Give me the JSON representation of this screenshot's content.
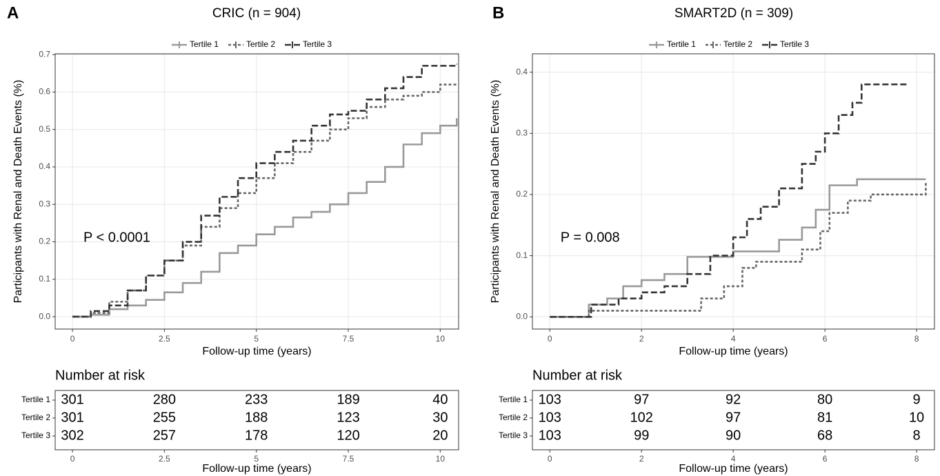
{
  "chart_data": [
    {
      "type": "step",
      "panel": "A",
      "title": "CRIC (n = 904)",
      "xlabel": "Follow-up time (years)",
      "ylabel": "Participants with Renal and Death Events (%)",
      "annotation": "P < 0.0001",
      "risk_title": "Number at risk",
      "grid": true,
      "legend": "top",
      "xlim": [
        -0.47,
        10.5
      ],
      "xticks": [
        0,
        2.5,
        5,
        7.5,
        10
      ],
      "ylim": [
        -0.033,
        0.702
      ],
      "yticks": [
        {
          "value": 0,
          "label": "0.0"
        },
        {
          "value": 0.1,
          "label": "0.1"
        },
        {
          "value": 0.2,
          "label": "0.2"
        },
        {
          "value": 0.3,
          "label": "0.3"
        },
        {
          "value": 0.4,
          "label": "0.4"
        },
        {
          "value": 0.5,
          "label": "0.5"
        },
        {
          "value": 0.6,
          "label": "0.6"
        },
        {
          "value": 0.7,
          "label": "0.7"
        }
      ],
      "series": [
        {
          "name": "Tertile 1",
          "color": "#999999",
          "dash": "solid",
          "x": [
            0,
            0.5,
            1,
            1.5,
            2,
            2.5,
            3,
            3.5,
            4,
            4.5,
            5,
            5.5,
            6,
            6.5,
            7,
            7.5,
            8,
            8.5,
            9,
            9.5,
            10,
            10.45
          ],
          "values": [
            0,
            0.005,
            0.02,
            0.03,
            0.045,
            0.065,
            0.09,
            0.12,
            0.17,
            0.19,
            0.22,
            0.24,
            0.265,
            0.28,
            0.3,
            0.33,
            0.36,
            0.4,
            0.46,
            0.49,
            0.51,
            0.53
          ],
          "at_risk": [
            301,
            280,
            233,
            189,
            40
          ]
        },
        {
          "name": "Tertile 2",
          "color": "#666666",
          "dash": "dotted",
          "x": [
            0,
            0.5,
            1,
            1.5,
            2,
            2.5,
            3,
            3.5,
            4,
            4.5,
            5,
            5.5,
            6,
            6.5,
            7,
            7.5,
            8,
            8.5,
            9,
            9.5,
            10,
            10.45
          ],
          "values": [
            0,
            0.01,
            0.04,
            0.07,
            0.11,
            0.15,
            0.19,
            0.24,
            0.29,
            0.33,
            0.37,
            0.41,
            0.44,
            0.47,
            0.5,
            0.53,
            0.56,
            0.58,
            0.59,
            0.6,
            0.62,
            0.62
          ],
          "at_risk": [
            301,
            255,
            188,
            123,
            30
          ]
        },
        {
          "name": "Tertile 3",
          "color": "#333333",
          "dash": "dashed",
          "x": [
            0,
            0.5,
            1,
            1.5,
            2,
            2.5,
            3,
            3.5,
            4,
            4.5,
            5,
            5.5,
            6,
            6.5,
            7,
            7.5,
            8,
            8.5,
            9,
            9.5,
            10,
            10.45
          ],
          "values": [
            0,
            0.015,
            0.03,
            0.07,
            0.11,
            0.15,
            0.2,
            0.27,
            0.32,
            0.37,
            0.41,
            0.44,
            0.47,
            0.51,
            0.54,
            0.55,
            0.58,
            0.61,
            0.64,
            0.67,
            0.67,
            0.675
          ],
          "at_risk": [
            302,
            257,
            178,
            120,
            20
          ]
        }
      ]
    },
    {
      "type": "step",
      "panel": "B",
      "title": "SMART2D (n = 309)",
      "xlabel": "Follow-up time (years)",
      "ylabel": "Participants with Renal and Death Events (%)",
      "annotation": "P = 0.008",
      "risk_title": "Number at risk",
      "grid": true,
      "legend": "top",
      "xlim": [
        -0.38,
        8.39
      ],
      "xticks": [
        0,
        2,
        4,
        6,
        8
      ],
      "ylim": [
        -0.02,
        0.43
      ],
      "yticks": [
        {
          "value": 0,
          "label": "0.0"
        },
        {
          "value": 0.1,
          "label": "0.1"
        },
        {
          "value": 0.2,
          "label": "0.2"
        },
        {
          "value": 0.3,
          "label": "0.3"
        },
        {
          "value": 0.4,
          "label": "0.4"
        }
      ],
      "series": [
        {
          "name": "Tertile 1",
          "color": "#999999",
          "dash": "solid",
          "x": [
            0,
            0.85,
            1.25,
            1.6,
            2,
            2.5,
            3,
            3.5,
            4,
            4.5,
            5,
            5.5,
            5.8,
            6.1,
            6.7,
            8.2
          ],
          "values": [
            0,
            0.02,
            0.03,
            0.05,
            0.06,
            0.07,
            0.098,
            0.098,
            0.107,
            0.107,
            0.126,
            0.146,
            0.175,
            0.215,
            0.225,
            0.225
          ],
          "at_risk": [
            103,
            97,
            92,
            80,
            9
          ]
        },
        {
          "name": "Tertile 2",
          "color": "#666666",
          "dash": "dotted",
          "x": [
            0,
            0.85,
            3,
            3.3,
            3.8,
            4.2,
            4.5,
            5,
            5.5,
            5.9,
            6.1,
            6.5,
            7,
            8.2
          ],
          "values": [
            0,
            0.01,
            0.01,
            0.03,
            0.05,
            0.08,
            0.09,
            0.09,
            0.11,
            0.14,
            0.17,
            0.19,
            0.2,
            0.22
          ],
          "at_risk": [
            103,
            102,
            97,
            81,
            10
          ]
        },
        {
          "name": "Tertile 3",
          "color": "#333333",
          "dash": "dashed",
          "x": [
            0,
            0.9,
            1.5,
            2,
            2.5,
            3,
            3.5,
            4,
            4.3,
            4.6,
            5,
            5.5,
            5.8,
            6,
            6.3,
            6.6,
            6.8,
            7.8
          ],
          "values": [
            0,
            0.02,
            0.03,
            0.04,
            0.05,
            0.07,
            0.1,
            0.13,
            0.16,
            0.18,
            0.21,
            0.25,
            0.27,
            0.3,
            0.33,
            0.35,
            0.38,
            0.38
          ],
          "at_risk": [
            103,
            99,
            90,
            68,
            8
          ]
        }
      ]
    }
  ]
}
